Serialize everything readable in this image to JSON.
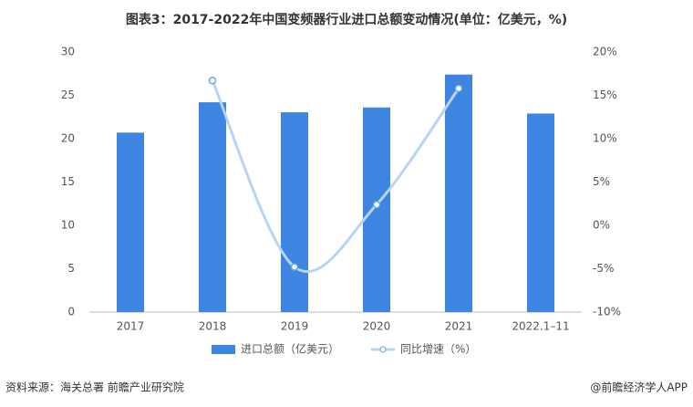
{
  "chart_data": {
    "type": "bar_line",
    "title": "图表3：2017-2022年中国变频器行业进口总额变动情况(单位：亿美元，%)",
    "categories": [
      "2017",
      "2018",
      "2019",
      "2020",
      "2021",
      "2022.1–11"
    ],
    "series": [
      {
        "name": "进口总额（亿美元）",
        "type": "bar",
        "color": "#3d85e0",
        "values": [
          20.7,
          24.2,
          23.05,
          23.6,
          27.4,
          22.9
        ]
      },
      {
        "name": "同比增速（%）",
        "type": "line",
        "axis": "y2",
        "color": "#b8d4f5",
        "values": [
          null,
          16.7,
          -4.8,
          2.4,
          15.8,
          null
        ]
      }
    ],
    "ylim": [
      0,
      30
    ],
    "yticks": [
      0,
      5,
      10,
      15,
      20,
      25,
      30
    ],
    "y2lim": [
      -10,
      20
    ],
    "y2ticks": [
      {
        "value": -10,
        "label": "-10%"
      },
      {
        "value": -5,
        "label": "-5%"
      },
      {
        "value": 0,
        "label": "0%"
      },
      {
        "value": 5,
        "label": "5%"
      },
      {
        "value": 10,
        "label": "10%"
      },
      {
        "value": 15,
        "label": "15%"
      },
      {
        "value": 20,
        "label": "20%"
      }
    ],
    "source": "资料来源：海关总署 前瞻产业研究院",
    "credit": "@前瞻经济学人APP"
  }
}
